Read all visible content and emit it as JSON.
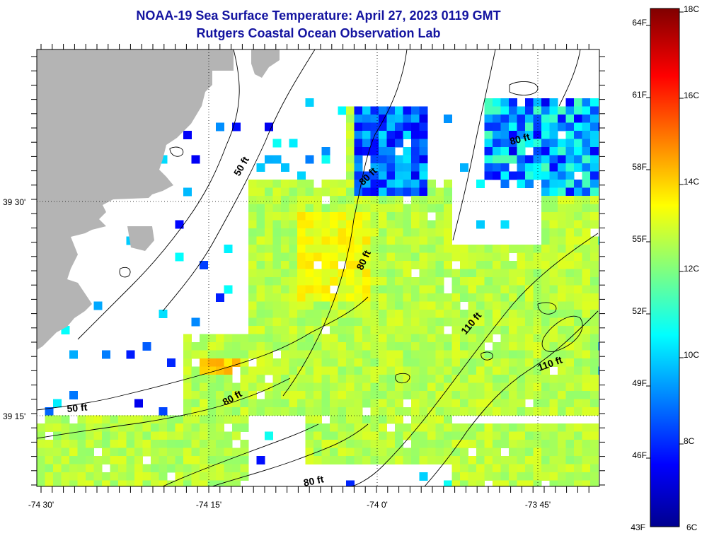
{
  "title": {
    "line1": "NOAA-19 Sea Surface Temperature:  April 27, 2023 0119 GMT",
    "line2": "Rutgers Coastal Ocean Observation Lab"
  },
  "axes": {
    "x_ticks": [
      "-74 30'",
      "-74 15'",
      "-74 0'",
      "-73 45'"
    ],
    "y_ticks": [
      "39 30'",
      "39 15'"
    ]
  },
  "contours": [
    "50 ft",
    "50 ft",
    "80 ft",
    "80 ft",
    "80 ft",
    "80 ft",
    "80 ft",
    "110 ft",
    "110 ft"
  ],
  "colorbar": {
    "celsius": [
      "18C",
      "16C",
      "14C",
      "12C",
      "10C",
      "8C",
      "6C"
    ],
    "fahrenheit": [
      "64F",
      "61F",
      "58F",
      "55F",
      "52F",
      "49F",
      "46F",
      "43F"
    ],
    "range_c": [
      6,
      18
    ],
    "range_f": [
      43,
      64
    ]
  },
  "colors": {
    "land": "#b4b4b4",
    "title": "#1414a0",
    "colormap": [
      "#00008f",
      "#0000ff",
      "#00ffff",
      "#ffff00",
      "#ff0000",
      "#800000"
    ]
  }
}
